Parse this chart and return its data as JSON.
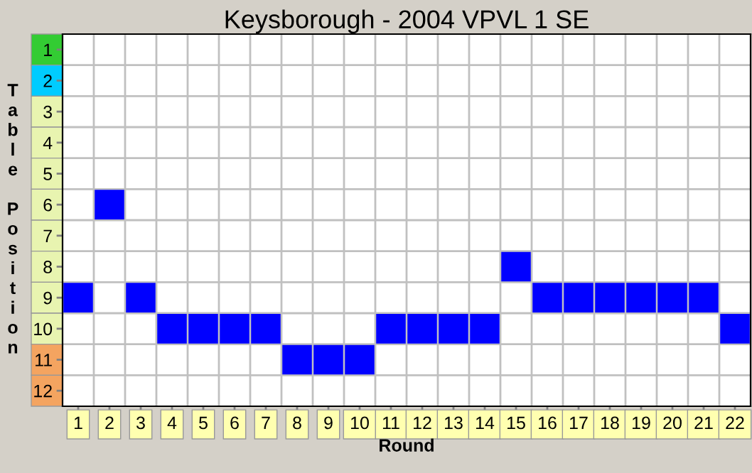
{
  "chart_data": {
    "type": "scatter",
    "title": "Keysborough - 2004 VPVL 1 SE",
    "xlabel": "Round",
    "ylabel": "Table Position",
    "categories": [
      "1",
      "2",
      "3",
      "4",
      "5",
      "6",
      "7",
      "8",
      "9",
      "10",
      "11",
      "12",
      "13",
      "14",
      "15",
      "16",
      "17",
      "18",
      "19",
      "20",
      "21",
      "22"
    ],
    "series": [
      {
        "color": "#0000ff",
        "values": [
          9,
          6,
          9,
          10,
          10,
          10,
          10,
          11,
          11,
          11,
          10,
          10,
          10,
          10,
          8,
          9,
          9,
          9,
          9,
          9,
          9,
          10
        ]
      }
    ],
    "ylim": [
      12.5,
      0.5
    ],
    "yticks": [
      1,
      2,
      3,
      4,
      5,
      6,
      7,
      8,
      9,
      10,
      11,
      12
    ],
    "marker": "square",
    "grid": true,
    "legend": false
  }
}
